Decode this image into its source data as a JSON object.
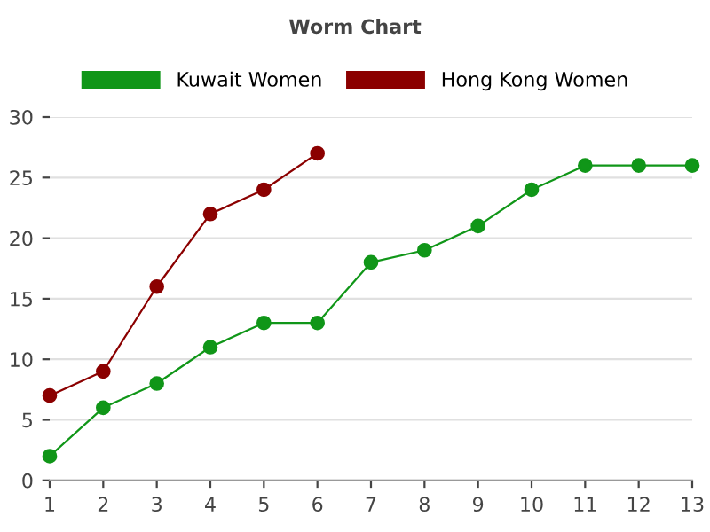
{
  "chart_data": {
    "type": "line",
    "title": "Worm Chart",
    "x": [
      1,
      2,
      3,
      4,
      5,
      6,
      7,
      8,
      9,
      10,
      11,
      12,
      13
    ],
    "series": [
      {
        "name": "Kuwait Women",
        "color": "#109618",
        "values": [
          2,
          6,
          8,
          11,
          13,
          13,
          18,
          19,
          21,
          24,
          26,
          26,
          26
        ]
      },
      {
        "name": "Hong Kong Women",
        "color": "#8b0000",
        "x": [
          1,
          2,
          3,
          4,
          5,
          6
        ],
        "values": [
          7,
          9,
          16,
          22,
          24,
          27
        ]
      }
    ],
    "xlim": [
      1,
      13
    ],
    "xticks": [
      1,
      2,
      3,
      4,
      5,
      6,
      7,
      8,
      9,
      10,
      11,
      12,
      13
    ],
    "ylim": [
      0,
      30
    ],
    "yticks": [
      0,
      5,
      10,
      15,
      20,
      25,
      30
    ],
    "grid": "y",
    "legend": "top",
    "marker": "circle",
    "line_style": "solid"
  }
}
